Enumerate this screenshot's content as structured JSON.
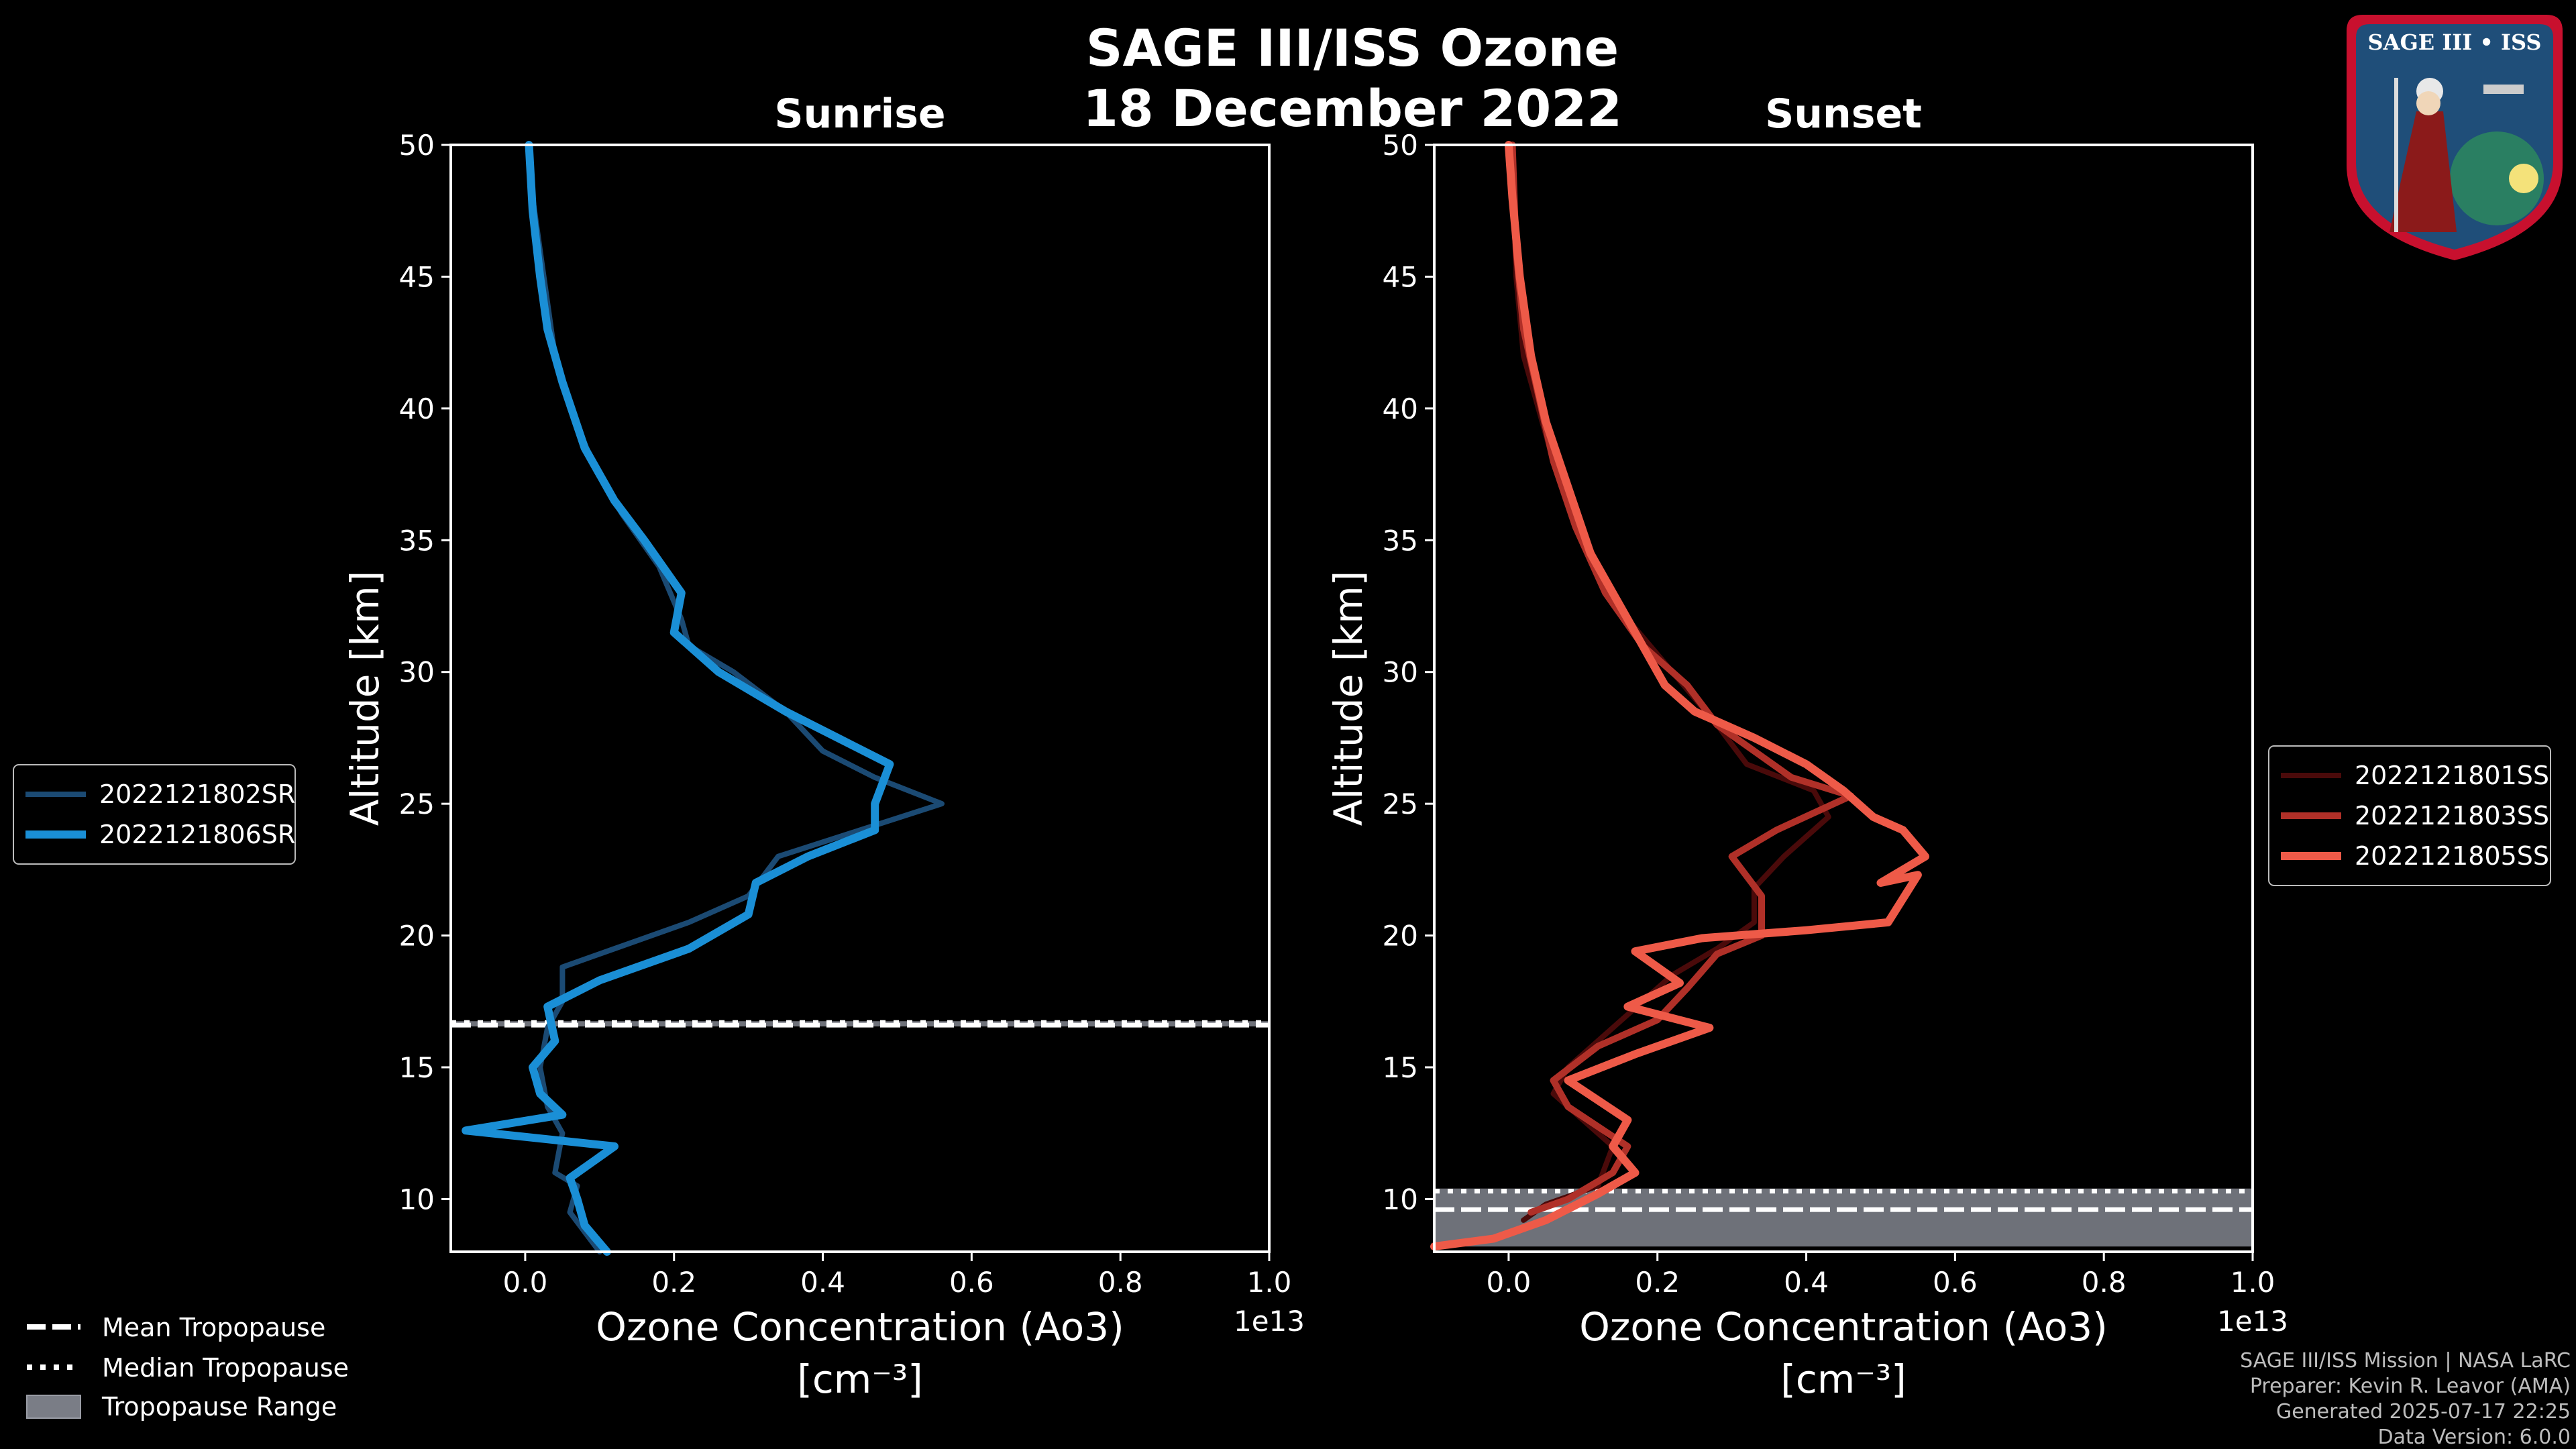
{
  "title_line1": "SAGE III/ISS Ozone",
  "title_line2": "18 December 2022",
  "footer": {
    "line1": "SAGE III/ISS Mission | NASA LaRC",
    "line2": "Preparer: Kevin R. Leavor (AMA)",
    "line3": "Generated 2025-07-17 22:25",
    "line4": "Data Version: 6.0.0"
  },
  "logo": {
    "text": "SAGE III • ISS",
    "ring_color": "#c8102e",
    "field_color": "#1f4e79"
  },
  "tropo_legend": {
    "mean": "Mean Tropopause",
    "median": "Median Tropopause",
    "range": "Tropopause Range"
  },
  "chart_data": [
    {
      "type": "line",
      "title": "Sunrise",
      "xlabel_line1": "Ozone Concentration (Ao3)",
      "xlabel_line2": "[cm⁻³]",
      "ylabel": "Altitude [km]",
      "xlim": [
        -0.1,
        1.0
      ],
      "ylim": [
        8,
        50
      ],
      "x_multiplier": "1e13",
      "xticks": [
        0.0,
        0.2,
        0.4,
        0.6,
        0.8,
        1.0
      ],
      "xtick_labels": [
        "0.0",
        "0.2",
        "0.4",
        "0.6",
        "0.8",
        "1.0"
      ],
      "yticks": [
        10,
        15,
        20,
        25,
        30,
        35,
        40,
        45,
        50
      ],
      "ytick_labels": [
        "10",
        "15",
        "20",
        "25",
        "30",
        "35",
        "40",
        "45",
        "50"
      ],
      "tropopause": {
        "mean": 16.6,
        "median": 16.7,
        "range": [
          16.55,
          16.75
        ]
      },
      "legend_position": "left",
      "series": [
        {
          "name": "2022121802SR",
          "color": "#1b4a73",
          "width": 8,
          "points": [
            [
              0.1,
              8
            ],
            [
              0.06,
              9.5
            ],
            [
              0.07,
              10.5
            ],
            [
              0.04,
              11
            ],
            [
              0.05,
              12.5
            ],
            [
              0.03,
              13.5
            ],
            [
              0.02,
              15
            ],
            [
              0.03,
              16.5
            ],
            [
              0.05,
              17.5
            ],
            [
              0.05,
              18.8
            ],
            [
              0.12,
              19.5
            ],
            [
              0.22,
              20.5
            ],
            [
              0.3,
              21.5
            ],
            [
              0.34,
              23
            ],
            [
              0.45,
              24
            ],
            [
              0.56,
              25
            ],
            [
              0.47,
              26
            ],
            [
              0.4,
              27
            ],
            [
              0.35,
              28.5
            ],
            [
              0.28,
              30
            ],
            [
              0.22,
              31
            ],
            [
              0.21,
              32
            ],
            [
              0.18,
              34
            ],
            [
              0.13,
              36
            ],
            [
              0.09,
              38
            ],
            [
              0.06,
              40
            ],
            [
              0.04,
              42
            ],
            [
              0.03,
              44
            ],
            [
              0.02,
              46
            ],
            [
              0.01,
              48
            ],
            [
              0.005,
              50
            ]
          ]
        },
        {
          "name": "2022121806SR",
          "color": "#1a8fd6",
          "width": 12,
          "points": [
            [
              0.11,
              8
            ],
            [
              0.08,
              9
            ],
            [
              0.07,
              10
            ],
            [
              0.06,
              10.8
            ],
            [
              0.12,
              12
            ],
            [
              -0.08,
              12.6
            ],
            [
              0.05,
              13.2
            ],
            [
              0.02,
              14
            ],
            [
              0.01,
              15
            ],
            [
              0.04,
              16
            ],
            [
              0.03,
              17.3
            ],
            [
              0.1,
              18.3
            ],
            [
              0.22,
              19.5
            ],
            [
              0.3,
              20.8
            ],
            [
              0.31,
              22
            ],
            [
              0.38,
              23
            ],
            [
              0.47,
              24
            ],
            [
              0.47,
              25
            ],
            [
              0.49,
              26.5
            ],
            [
              0.42,
              27.5
            ],
            [
              0.35,
              28.5
            ],
            [
              0.26,
              30
            ],
            [
              0.2,
              31.5
            ],
            [
              0.21,
              33
            ],
            [
              0.16,
              35
            ],
            [
              0.12,
              36.5
            ],
            [
              0.08,
              38.5
            ],
            [
              0.05,
              41
            ],
            [
              0.03,
              43
            ],
            [
              0.02,
              45
            ],
            [
              0.01,
              47.5
            ],
            [
              0.005,
              50
            ]
          ]
        }
      ]
    },
    {
      "type": "line",
      "title": "Sunset",
      "xlabel_line1": "Ozone Concentration (Ao3)",
      "xlabel_line2": "[cm⁻³]",
      "ylabel": "Altitude [km]",
      "xlim": [
        -0.1,
        1.0
      ],
      "ylim": [
        8,
        50
      ],
      "x_multiplier": "1e13",
      "xticks": [
        0.0,
        0.2,
        0.4,
        0.6,
        0.8,
        1.0
      ],
      "xtick_labels": [
        "0.0",
        "0.2",
        "0.4",
        "0.6",
        "0.8",
        "1.0"
      ],
      "yticks": [
        10,
        15,
        20,
        25,
        30,
        35,
        40,
        45,
        50
      ],
      "ytick_labels": [
        "10",
        "15",
        "20",
        "25",
        "30",
        "35",
        "40",
        "45",
        "50"
      ],
      "tropopause": {
        "mean": 9.6,
        "median": 10.3,
        "range": [
          8.2,
          10.4
        ]
      },
      "legend_position": "right",
      "series": [
        {
          "name": "2022121801SS",
          "color": "#4a0a0a",
          "width": 8,
          "points": [
            [
              0.02,
              9.2
            ],
            [
              0.05,
              9.8
            ],
            [
              0.12,
              10.5
            ],
            [
              0.14,
              12
            ],
            [
              0.1,
              13
            ],
            [
              0.06,
              14
            ],
            [
              0.08,
              15
            ],
            [
              0.14,
              16.5
            ],
            [
              0.18,
              17.5
            ],
            [
              0.22,
              18.5
            ],
            [
              0.28,
              19.5
            ],
            [
              0.33,
              20.5
            ],
            [
              0.33,
              21.8
            ],
            [
              0.37,
              23
            ],
            [
              0.43,
              24.5
            ],
            [
              0.41,
              25.5
            ],
            [
              0.32,
              26.5
            ],
            [
              0.28,
              28
            ],
            [
              0.22,
              30
            ],
            [
              0.16,
              32
            ],
            [
              0.12,
              34
            ],
            [
              0.09,
              36
            ],
            [
              0.06,
              38
            ],
            [
              0.04,
              40
            ],
            [
              0.02,
              42
            ],
            [
              0.01,
              45
            ],
            [
              0.005,
              50
            ]
          ]
        },
        {
          "name": "2022121803SS",
          "color": "#b03028",
          "width": 10,
          "points": [
            [
              0.03,
              9.5
            ],
            [
              0.08,
              10
            ],
            [
              0.14,
              11
            ],
            [
              0.16,
              12
            ],
            [
              0.08,
              13.5
            ],
            [
              0.06,
              14.5
            ],
            [
              0.12,
              15.8
            ],
            [
              0.2,
              16.8
            ],
            [
              0.24,
              18
            ],
            [
              0.28,
              19.3
            ],
            [
              0.34,
              20
            ],
            [
              0.34,
              21.5
            ],
            [
              0.3,
              23
            ],
            [
              0.36,
              24
            ],
            [
              0.46,
              25.3
            ],
            [
              0.38,
              26
            ],
            [
              0.33,
              27
            ],
            [
              0.28,
              28
            ],
            [
              0.24,
              29.5
            ],
            [
              0.18,
              31
            ],
            [
              0.13,
              33
            ],
            [
              0.09,
              35.5
            ],
            [
              0.06,
              38
            ],
            [
              0.04,
              40.5
            ],
            [
              0.02,
              43
            ],
            [
              0.01,
              46
            ],
            [
              0.005,
              50
            ]
          ]
        },
        {
          "name": "2022121805SS",
          "color": "#ee5a48",
          "width": 12,
          "points": [
            [
              -0.1,
              8.2
            ],
            [
              -0.02,
              8.5
            ],
            [
              0.05,
              9.2
            ],
            [
              0.12,
              10.2
            ],
            [
              0.17,
              11
            ],
            [
              0.14,
              12
            ],
            [
              0.16,
              13
            ],
            [
              0.08,
              14.5
            ],
            [
              0.17,
              15.5
            ],
            [
              0.27,
              16.5
            ],
            [
              0.16,
              17.3
            ],
            [
              0.23,
              18.2
            ],
            [
              0.17,
              19.4
            ],
            [
              0.26,
              19.9
            ],
            [
              0.4,
              20.2
            ],
            [
              0.51,
              20.5
            ],
            [
              0.55,
              22.3
            ],
            [
              0.5,
              22
            ],
            [
              0.56,
              23
            ],
            [
              0.53,
              24
            ],
            [
              0.49,
              24.5
            ],
            [
              0.45,
              25.5
            ],
            [
              0.4,
              26.5
            ],
            [
              0.33,
              27.5
            ],
            [
              0.25,
              28.5
            ],
            [
              0.21,
              29.5
            ],
            [
              0.16,
              32
            ],
            [
              0.11,
              34.5
            ],
            [
              0.08,
              37
            ],
            [
              0.05,
              39.5
            ],
            [
              0.03,
              42
            ],
            [
              0.015,
              45
            ],
            [
              0.005,
              48
            ],
            [
              0.0,
              50
            ]
          ]
        }
      ]
    }
  ]
}
